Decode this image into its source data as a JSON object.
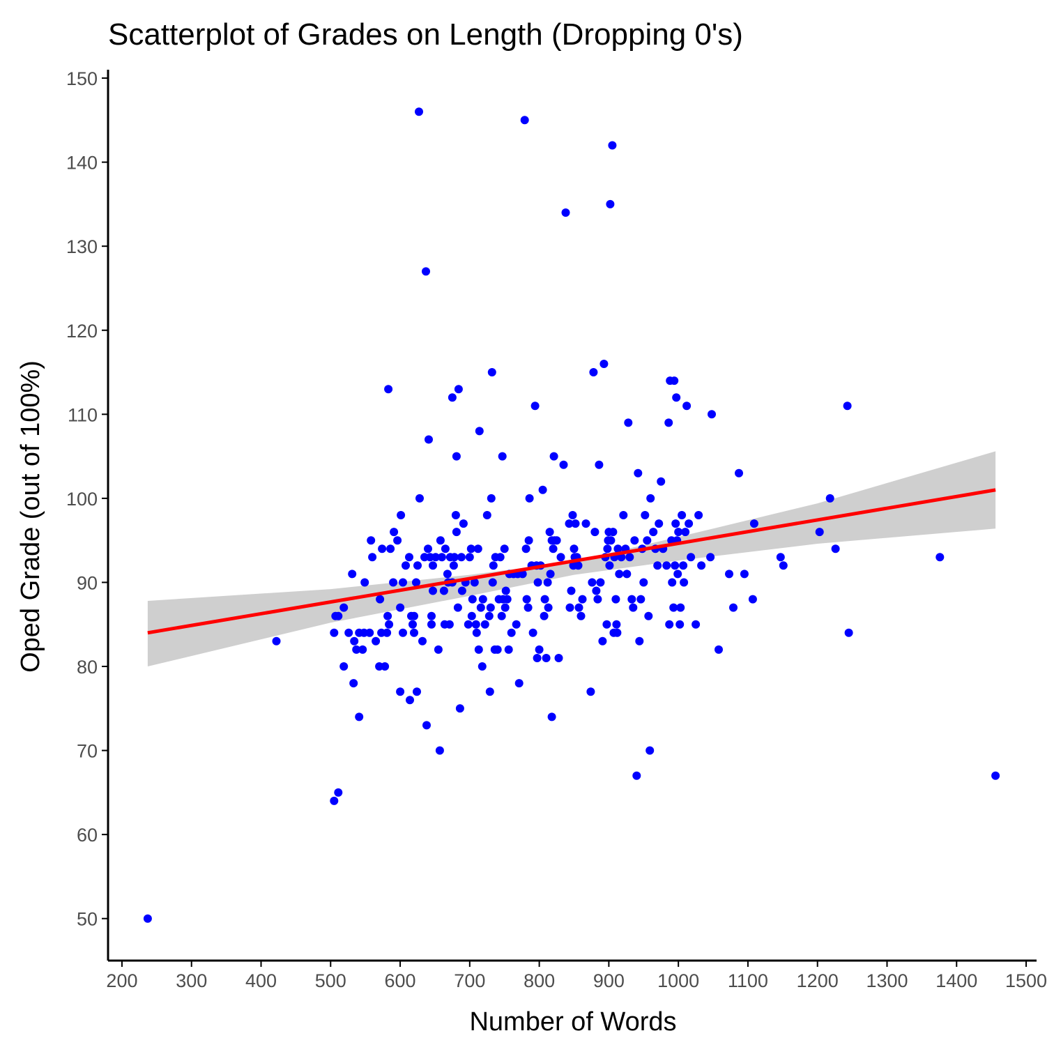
{
  "chart_data": {
    "type": "scatter",
    "title": "Scatterplot of Grades on Length (Dropping 0's)",
    "xlabel": "Number of Words",
    "ylabel": "Oped Grade (out of 100%)",
    "xlim": [
      180,
      1515
    ],
    "ylim": [
      45,
      151
    ],
    "xticks": [
      200,
      300,
      400,
      500,
      600,
      700,
      800,
      900,
      1000,
      1100,
      1200,
      1300,
      1400,
      1500
    ],
    "yticks": [
      50,
      60,
      70,
      80,
      90,
      100,
      110,
      120,
      130,
      140,
      150
    ],
    "grid": false,
    "colors": {
      "points": "#0000ff",
      "fit_line": "#ff0000",
      "confidence_band": "#cccccc",
      "axis": "#000000",
      "tick_text": "#4d4d4d"
    },
    "fit": {
      "method": "linear",
      "x_range": [
        237,
        1456
      ],
      "line": [
        [
          237,
          84.0
        ],
        [
          1456,
          101.0
        ]
      ],
      "band_lower": [
        [
          237,
          80.0
        ],
        [
          500,
          85.2
        ],
        [
          700,
          88.4
        ],
        [
          850,
          90.9
        ],
        [
          1000,
          92.6
        ],
        [
          1200,
          94.6
        ],
        [
          1456,
          96.4
        ]
      ],
      "band_upper": [
        [
          237,
          87.8
        ],
        [
          500,
          89.2
        ],
        [
          700,
          90.9
        ],
        [
          850,
          92.5
        ],
        [
          1000,
          95.4
        ],
        [
          1200,
          99.4
        ],
        [
          1456,
          105.6
        ]
      ]
    },
    "points": [
      [
        237,
        50
      ],
      [
        422,
        83
      ],
      [
        505,
        64
      ],
      [
        511,
        65
      ],
      [
        505,
        84
      ],
      [
        507,
        86
      ],
      [
        511,
        86
      ],
      [
        519,
        80
      ],
      [
        519,
        87
      ],
      [
        526,
        84
      ],
      [
        531,
        91
      ],
      [
        533,
        78
      ],
      [
        534,
        83
      ],
      [
        537,
        82
      ],
      [
        541,
        74
      ],
      [
        541,
        84
      ],
      [
        546,
        82
      ],
      [
        548,
        84
      ],
      [
        549,
        90
      ],
      [
        556,
        84
      ],
      [
        558,
        95
      ],
      [
        560,
        93
      ],
      [
        565,
        83
      ],
      [
        570,
        80
      ],
      [
        571,
        88
      ],
      [
        573,
        84
      ],
      [
        574,
        94
      ],
      [
        578,
        80
      ],
      [
        581,
        84
      ],
      [
        582,
        86
      ],
      [
        583,
        113
      ],
      [
        584,
        85
      ],
      [
        586,
        94
      ],
      [
        590,
        90
      ],
      [
        591,
        96
      ],
      [
        596,
        95
      ],
      [
        600,
        77
      ],
      [
        600,
        87
      ],
      [
        601,
        98
      ],
      [
        604,
        84
      ],
      [
        604,
        90
      ],
      [
        608,
        92
      ],
      [
        613,
        93
      ],
      [
        614,
        76
      ],
      [
        616,
        86
      ],
      [
        618,
        85
      ],
      [
        620,
        84
      ],
      [
        620,
        86
      ],
      [
        623,
        90
      ],
      [
        624,
        77
      ],
      [
        625,
        92
      ],
      [
        627,
        146
      ],
      [
        628,
        100
      ],
      [
        632,
        83
      ],
      [
        635,
        93
      ],
      [
        637,
        127
      ],
      [
        638,
        73
      ],
      [
        640,
        94
      ],
      [
        641,
        107
      ],
      [
        643,
        93
      ],
      [
        645,
        86
      ],
      [
        645,
        85
      ],
      [
        647,
        89
      ],
      [
        647,
        92
      ],
      [
        651,
        93
      ],
      [
        655,
        82
      ],
      [
        657,
        70
      ],
      [
        658,
        95
      ],
      [
        660,
        93
      ],
      [
        663,
        89
      ],
      [
        664,
        85
      ],
      [
        665,
        94
      ],
      [
        668,
        91
      ],
      [
        669,
        90
      ],
      [
        671,
        85
      ],
      [
        672,
        93
      ],
      [
        675,
        112
      ],
      [
        675,
        90
      ],
      [
        677,
        92
      ],
      [
        678,
        93
      ],
      [
        680,
        98
      ],
      [
        681,
        105
      ],
      [
        681,
        96
      ],
      [
        683,
        87
      ],
      [
        684,
        113
      ],
      [
        686,
        75
      ],
      [
        688,
        93
      ],
      [
        689,
        89
      ],
      [
        691,
        97
      ],
      [
        694,
        90
      ],
      [
        698,
        85
      ],
      [
        700,
        93
      ],
      [
        702,
        94
      ],
      [
        703,
        86
      ],
      [
        704,
        88
      ],
      [
        707,
        90
      ],
      [
        709,
        85
      ],
      [
        710,
        84
      ],
      [
        712,
        94
      ],
      [
        713,
        82
      ],
      [
        714,
        108
      ],
      [
        716,
        87
      ],
      [
        718,
        80
      ],
      [
        719,
        88
      ],
      [
        722,
        85
      ],
      [
        725,
        98
      ],
      [
        728,
        86
      ],
      [
        729,
        77
      ],
      [
        730,
        87
      ],
      [
        731,
        100
      ],
      [
        732,
        115
      ],
      [
        733,
        90
      ],
      [
        734,
        92
      ],
      [
        736,
        82
      ],
      [
        737,
        93
      ],
      [
        740,
        82
      ],
      [
        742,
        88
      ],
      [
        744,
        93
      ],
      [
        746,
        86
      ],
      [
        747,
        105
      ],
      [
        748,
        88
      ],
      [
        750,
        94
      ],
      [
        751,
        87
      ],
      [
        752,
        89
      ],
      [
        754,
        88
      ],
      [
        756,
        82
      ],
      [
        757,
        91
      ],
      [
        760,
        84
      ],
      [
        763,
        91
      ],
      [
        767,
        85
      ],
      [
        769,
        91
      ],
      [
        771,
        78
      ],
      [
        776,
        91
      ],
      [
        779,
        145
      ],
      [
        781,
        94
      ],
      [
        782,
        88
      ],
      [
        784,
        87
      ],
      [
        785,
        95
      ],
      [
        786,
        100
      ],
      [
        789,
        92
      ],
      [
        791,
        84
      ],
      [
        794,
        111
      ],
      [
        796,
        92
      ],
      [
        797,
        81
      ],
      [
        798,
        90
      ],
      [
        800,
        82
      ],
      [
        802,
        92
      ],
      [
        805,
        101
      ],
      [
        807,
        86
      ],
      [
        808,
        88
      ],
      [
        810,
        81
      ],
      [
        812,
        90
      ],
      [
        813,
        87
      ],
      [
        815,
        96
      ],
      [
        816,
        91
      ],
      [
        818,
        74
      ],
      [
        818,
        95
      ],
      [
        820,
        94
      ],
      [
        821,
        105
      ],
      [
        822,
        95
      ],
      [
        825,
        95
      ],
      [
        828,
        81
      ],
      [
        831,
        93
      ],
      [
        835,
        104
      ],
      [
        838,
        134
      ],
      [
        843,
        97
      ],
      [
        844,
        87
      ],
      [
        846,
        89
      ],
      [
        848,
        98
      ],
      [
        849,
        92
      ],
      [
        850,
        94
      ],
      [
        851,
        93
      ],
      [
        852,
        97
      ],
      [
        854,
        93
      ],
      [
        856,
        92
      ],
      [
        857,
        87
      ],
      [
        860,
        86
      ],
      [
        862,
        88
      ],
      [
        867,
        97
      ],
      [
        874,
        77
      ],
      [
        876,
        90
      ],
      [
        878,
        115
      ],
      [
        880,
        96
      ],
      [
        882,
        89
      ],
      [
        884,
        88
      ],
      [
        886,
        104
      ],
      [
        888,
        90
      ],
      [
        891,
        83
      ],
      [
        893,
        116
      ],
      [
        895,
        93
      ],
      [
        897,
        85
      ],
      [
        898,
        94
      ],
      [
        899,
        95
      ],
      [
        900,
        96
      ],
      [
        901,
        92
      ],
      [
        902,
        135
      ],
      [
        903,
        95
      ],
      [
        905,
        142
      ],
      [
        906,
        96
      ],
      [
        907,
        84
      ],
      [
        908,
        93
      ],
      [
        910,
        88
      ],
      [
        911,
        85
      ],
      [
        912,
        84
      ],
      [
        913,
        94
      ],
      [
        915,
        91
      ],
      [
        918,
        93
      ],
      [
        921,
        98
      ],
      [
        924,
        94
      ],
      [
        926,
        91
      ],
      [
        928,
        109
      ],
      [
        930,
        93
      ],
      [
        933,
        88
      ],
      [
        935,
        87
      ],
      [
        937,
        95
      ],
      [
        940,
        67
      ],
      [
        942,
        103
      ],
      [
        944,
        83
      ],
      [
        946,
        88
      ],
      [
        948,
        94
      ],
      [
        950,
        90
      ],
      [
        952,
        98
      ],
      [
        955,
        95
      ],
      [
        957,
        86
      ],
      [
        959,
        70
      ],
      [
        960,
        100
      ],
      [
        964,
        96
      ],
      [
        967,
        94
      ],
      [
        970,
        92
      ],
      [
        972,
        97
      ],
      [
        975,
        102
      ],
      [
        978,
        94
      ],
      [
        983,
        92
      ],
      [
        986,
        109
      ],
      [
        987,
        85
      ],
      [
        988,
        114
      ],
      [
        990,
        95
      ],
      [
        991,
        90
      ],
      [
        993,
        87
      ],
      [
        994,
        114
      ],
      [
        995,
        92
      ],
      [
        996,
        97
      ],
      [
        997,
        112
      ],
      [
        998,
        95
      ],
      [
        999,
        91
      ],
      [
        1000,
        96
      ],
      [
        1002,
        85
      ],
      [
        1003,
        87
      ],
      [
        1005,
        98
      ],
      [
        1007,
        92
      ],
      [
        1008,
        90
      ],
      [
        1010,
        96
      ],
      [
        1012,
        111
      ],
      [
        1015,
        97
      ],
      [
        1018,
        93
      ],
      [
        1025,
        85
      ],
      [
        1029,
        98
      ],
      [
        1033,
        92
      ],
      [
        1046,
        93
      ],
      [
        1048,
        110
      ],
      [
        1058,
        82
      ],
      [
        1073,
        91
      ],
      [
        1079,
        87
      ],
      [
        1087,
        103
      ],
      [
        1095,
        91
      ],
      [
        1107,
        88
      ],
      [
        1109,
        97
      ],
      [
        1147,
        93
      ],
      [
        1151,
        92
      ],
      [
        1203,
        96
      ],
      [
        1218,
        100
      ],
      [
        1226,
        94
      ],
      [
        1243,
        111
      ],
      [
        1245,
        84
      ],
      [
        1376,
        93
      ],
      [
        1456,
        67
      ]
    ]
  }
}
